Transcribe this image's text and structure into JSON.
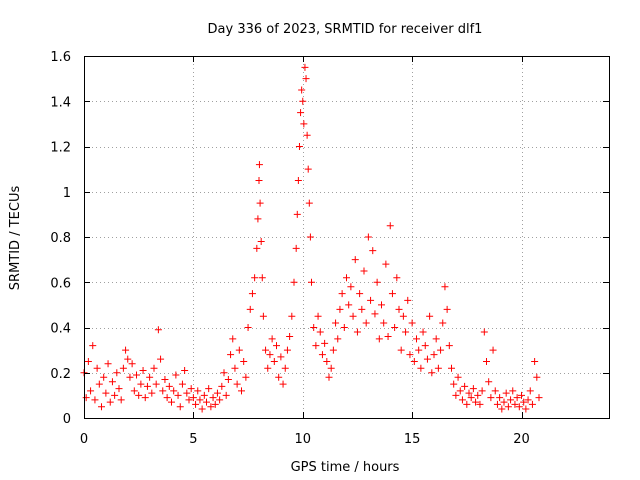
{
  "chart_data": {
    "type": "scatter",
    "title": "Day 336 of 2023, SRMTID for receiver dlf1",
    "xlabel": "GPS time / hours",
    "ylabel": "SRMTID / TECUs",
    "xlim": [
      0,
      24
    ],
    "ylim": [
      0,
      1.6
    ],
    "xticks": [
      0,
      5,
      10,
      15,
      20
    ],
    "xtick_labels": [
      "0",
      "5",
      "10",
      "15",
      "20"
    ],
    "yticks": [
      0,
      0.2,
      0.4,
      0.6,
      0.8,
      1.0,
      1.2,
      1.4,
      1.6
    ],
    "ytick_labels": [
      "0",
      "0.2",
      "0.4",
      "0.6",
      "0.8",
      "1",
      "1.2",
      "1.4",
      "1.6"
    ],
    "grid": true,
    "marker": "plus",
    "color": "#ff0000",
    "series": [
      {
        "name": "dlf1",
        "points": [
          [
            0.0,
            0.2
          ],
          [
            0.1,
            0.09
          ],
          [
            0.2,
            0.25
          ],
          [
            0.3,
            0.12
          ],
          [
            0.4,
            0.32
          ],
          [
            0.5,
            0.08
          ],
          [
            0.6,
            0.22
          ],
          [
            0.7,
            0.15
          ],
          [
            0.8,
            0.05
          ],
          [
            0.9,
            0.18
          ],
          [
            1.0,
            0.11
          ],
          [
            1.1,
            0.24
          ],
          [
            1.2,
            0.07
          ],
          [
            1.3,
            0.16
          ],
          [
            1.4,
            0.1
          ],
          [
            1.5,
            0.2
          ],
          [
            1.6,
            0.13
          ],
          [
            1.7,
            0.08
          ],
          [
            1.8,
            0.22
          ],
          [
            1.9,
            0.3
          ],
          [
            2.0,
            0.26
          ],
          [
            2.1,
            0.18
          ],
          [
            2.2,
            0.24
          ],
          [
            2.3,
            0.12
          ],
          [
            2.4,
            0.19
          ],
          [
            2.5,
            0.1
          ],
          [
            2.6,
            0.15
          ],
          [
            2.7,
            0.21
          ],
          [
            2.8,
            0.09
          ],
          [
            2.9,
            0.14
          ],
          [
            3.0,
            0.18
          ],
          [
            3.1,
            0.11
          ],
          [
            3.2,
            0.22
          ],
          [
            3.3,
            0.15
          ],
          [
            3.4,
            0.39
          ],
          [
            3.5,
            0.26
          ],
          [
            3.6,
            0.12
          ],
          [
            3.7,
            0.17
          ],
          [
            3.8,
            0.09
          ],
          [
            3.9,
            0.14
          ],
          [
            4.0,
            0.07
          ],
          [
            4.1,
            0.12
          ],
          [
            4.2,
            0.19
          ],
          [
            4.3,
            0.1
          ],
          [
            4.4,
            0.05
          ],
          [
            4.5,
            0.15
          ],
          [
            4.6,
            0.21
          ],
          [
            4.7,
            0.11
          ],
          [
            4.8,
            0.08
          ],
          [
            4.9,
            0.13
          ],
          [
            5.0,
            0.09
          ],
          [
            5.1,
            0.06
          ],
          [
            5.2,
            0.12
          ],
          [
            5.3,
            0.08
          ],
          [
            5.4,
            0.04
          ],
          [
            5.5,
            0.1
          ],
          [
            5.6,
            0.07
          ],
          [
            5.7,
            0.13
          ],
          [
            5.8,
            0.05
          ],
          [
            5.9,
            0.09
          ],
          [
            6.0,
            0.06
          ],
          [
            6.1,
            0.11
          ],
          [
            6.2,
            0.08
          ],
          [
            6.3,
            0.14
          ],
          [
            6.4,
            0.2
          ],
          [
            6.5,
            0.1
          ],
          [
            6.6,
            0.17
          ],
          [
            6.7,
            0.28
          ],
          [
            6.8,
            0.35
          ],
          [
            6.9,
            0.22
          ],
          [
            7.0,
            0.15
          ],
          [
            7.1,
            0.3
          ],
          [
            7.2,
            0.12
          ],
          [
            7.3,
            0.25
          ],
          [
            7.4,
            0.18
          ],
          [
            7.5,
            0.4
          ],
          [
            7.6,
            0.48
          ],
          [
            7.7,
            0.55
          ],
          [
            7.8,
            0.62
          ],
          [
            7.9,
            0.75
          ],
          [
            7.95,
            0.88
          ],
          [
            8.0,
            1.05
          ],
          [
            8.02,
            1.12
          ],
          [
            8.05,
            0.95
          ],
          [
            8.1,
            0.78
          ],
          [
            8.15,
            0.62
          ],
          [
            8.2,
            0.45
          ],
          [
            8.3,
            0.3
          ],
          [
            8.4,
            0.22
          ],
          [
            8.5,
            0.28
          ],
          [
            8.6,
            0.35
          ],
          [
            8.7,
            0.25
          ],
          [
            8.8,
            0.32
          ],
          [
            8.9,
            0.18
          ],
          [
            9.0,
            0.27
          ],
          [
            9.1,
            0.15
          ],
          [
            9.2,
            0.22
          ],
          [
            9.3,
            0.3
          ],
          [
            9.4,
            0.36
          ],
          [
            9.5,
            0.45
          ],
          [
            9.6,
            0.6
          ],
          [
            9.7,
            0.75
          ],
          [
            9.75,
            0.9
          ],
          [
            9.8,
            1.05
          ],
          [
            9.85,
            1.2
          ],
          [
            9.9,
            1.35
          ],
          [
            9.95,
            1.45
          ],
          [
            10.0,
            1.4
          ],
          [
            10.05,
            1.3
          ],
          [
            10.1,
            1.55
          ],
          [
            10.15,
            1.5
          ],
          [
            10.2,
            1.25
          ],
          [
            10.25,
            1.1
          ],
          [
            10.3,
            0.95
          ],
          [
            10.35,
            0.8
          ],
          [
            10.4,
            0.6
          ],
          [
            10.5,
            0.4
          ],
          [
            10.6,
            0.32
          ],
          [
            10.7,
            0.45
          ],
          [
            10.8,
            0.38
          ],
          [
            10.9,
            0.28
          ],
          [
            11.0,
            0.33
          ],
          [
            11.1,
            0.25
          ],
          [
            11.2,
            0.18
          ],
          [
            11.3,
            0.22
          ],
          [
            11.4,
            0.3
          ],
          [
            11.5,
            0.42
          ],
          [
            11.6,
            0.35
          ],
          [
            11.7,
            0.48
          ],
          [
            11.8,
            0.55
          ],
          [
            11.9,
            0.4
          ],
          [
            12.0,
            0.62
          ],
          [
            12.1,
            0.5
          ],
          [
            12.2,
            0.58
          ],
          [
            12.3,
            0.45
          ],
          [
            12.4,
            0.7
          ],
          [
            12.5,
            0.38
          ],
          [
            12.6,
            0.55
          ],
          [
            12.7,
            0.48
          ],
          [
            12.8,
            0.65
          ],
          [
            12.9,
            0.42
          ],
          [
            13.0,
            0.8
          ],
          [
            13.1,
            0.52
          ],
          [
            13.2,
            0.74
          ],
          [
            13.3,
            0.46
          ],
          [
            13.4,
            0.6
          ],
          [
            13.5,
            0.35
          ],
          [
            13.6,
            0.5
          ],
          [
            13.7,
            0.42
          ],
          [
            13.8,
            0.68
          ],
          [
            13.9,
            0.36
          ],
          [
            14.0,
            0.85
          ],
          [
            14.1,
            0.55
          ],
          [
            14.2,
            0.4
          ],
          [
            14.3,
            0.62
          ],
          [
            14.4,
            0.48
          ],
          [
            14.5,
            0.3
          ],
          [
            14.6,
            0.45
          ],
          [
            14.7,
            0.38
          ],
          [
            14.8,
            0.52
          ],
          [
            14.9,
            0.28
          ],
          [
            15.0,
            0.42
          ],
          [
            15.1,
            0.25
          ],
          [
            15.2,
            0.35
          ],
          [
            15.3,
            0.3
          ],
          [
            15.4,
            0.22
          ],
          [
            15.5,
            0.38
          ],
          [
            15.6,
            0.32
          ],
          [
            15.7,
            0.26
          ],
          [
            15.8,
            0.45
          ],
          [
            15.9,
            0.2
          ],
          [
            16.0,
            0.28
          ],
          [
            16.1,
            0.35
          ],
          [
            16.2,
            0.22
          ],
          [
            16.3,
            0.3
          ],
          [
            16.4,
            0.42
          ],
          [
            16.5,
            0.58
          ],
          [
            16.6,
            0.48
          ],
          [
            16.7,
            0.32
          ],
          [
            16.8,
            0.22
          ],
          [
            16.9,
            0.15
          ],
          [
            17.0,
            0.1
          ],
          [
            17.1,
            0.18
          ],
          [
            17.2,
            0.12
          ],
          [
            17.3,
            0.08
          ],
          [
            17.4,
            0.14
          ],
          [
            17.5,
            0.06
          ],
          [
            17.6,
            0.11
          ],
          [
            17.7,
            0.09
          ],
          [
            17.8,
            0.13
          ],
          [
            17.9,
            0.07
          ],
          [
            18.0,
            0.1
          ],
          [
            18.1,
            0.06
          ],
          [
            18.2,
            0.12
          ],
          [
            18.3,
            0.38
          ],
          [
            18.4,
            0.25
          ],
          [
            18.5,
            0.16
          ],
          [
            18.6,
            0.09
          ],
          [
            18.7,
            0.3
          ],
          [
            18.8,
            0.12
          ],
          [
            18.9,
            0.06
          ],
          [
            19.0,
            0.09
          ],
          [
            19.1,
            0.04
          ],
          [
            19.2,
            0.07
          ],
          [
            19.3,
            0.11
          ],
          [
            19.4,
            0.05
          ],
          [
            19.5,
            0.08
          ],
          [
            19.6,
            0.12
          ],
          [
            19.7,
            0.06
          ],
          [
            19.8,
            0.09
          ],
          [
            19.9,
            0.05
          ],
          [
            20.0,
            0.1
          ],
          [
            20.1,
            0.07
          ],
          [
            20.2,
            0.04
          ],
          [
            20.3,
            0.08
          ],
          [
            20.4,
            0.12
          ],
          [
            20.5,
            0.06
          ],
          [
            20.6,
            0.25
          ],
          [
            20.7,
            0.18
          ],
          [
            20.8,
            0.09
          ]
        ]
      }
    ]
  }
}
